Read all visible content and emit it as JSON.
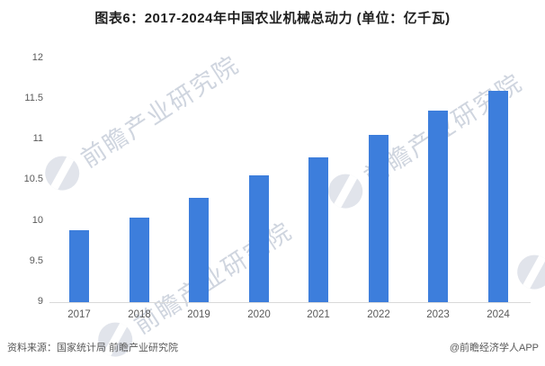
{
  "title": "图表6：2017-2024年中国农业机械总动力 (单位：亿千瓦)",
  "chart_data": {
    "type": "bar",
    "title": "图表6：2017-2024年中国农业机械总动力 (单位：亿千瓦)",
    "unit": "亿千瓦",
    "categories": [
      "2017",
      "2018",
      "2019",
      "2020",
      "2021",
      "2022",
      "2023",
      "2024"
    ],
    "values": [
      9.88,
      10.04,
      10.28,
      10.56,
      10.78,
      11.06,
      11.35,
      11.6
    ],
    "xlabel": "",
    "ylabel": "",
    "ylim": [
      9,
      12
    ],
    "yticks": [
      9,
      9.5,
      10,
      10.5,
      11,
      11.5,
      12
    ],
    "grid": false,
    "legend": false,
    "bar_color": "#3d7edc"
  },
  "watermark": {
    "text": "前瞻产业研究院"
  },
  "footer": {
    "source": "资料来源：国家统计局 前瞻产业研究院",
    "credit": "@前瞻经济学人APP"
  },
  "colors": {
    "bar": "#3d7edc",
    "axis_line": "#d9d9d9",
    "tick_label": "#595959",
    "title_text": "#1f1f1f",
    "watermark": "#a9b3c5"
  }
}
